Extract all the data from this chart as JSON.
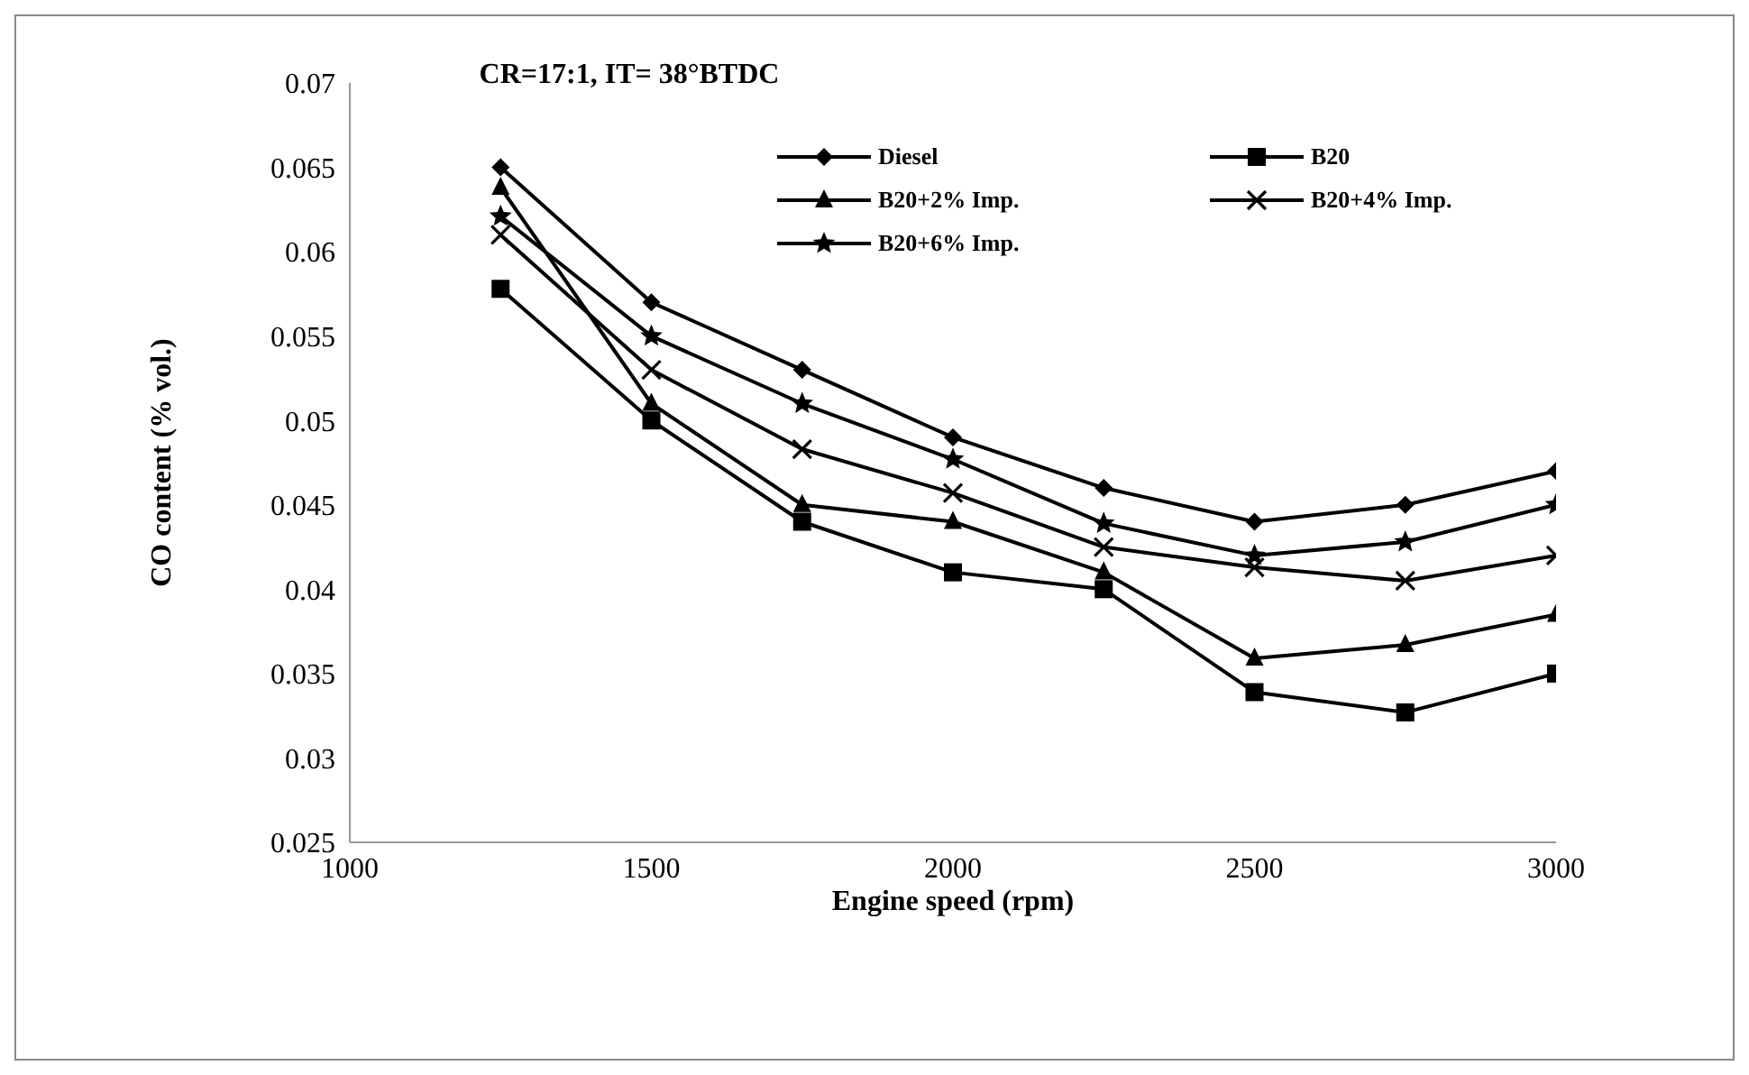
{
  "chart_data": {
    "type": "line",
    "title": "CR=17:1, IT= 38°BTDC",
    "xlabel": "Engine speed (rpm)",
    "ylabel": "CO content (% vol.)",
    "x": [
      1250,
      1500,
      1750,
      2000,
      2250,
      2500,
      2750,
      3000
    ],
    "series": [
      {
        "name": "Diesel",
        "color": "#000000",
        "marker": "diamond",
        "values": [
          0.065,
          0.057,
          0.053,
          0.049,
          0.046,
          0.044,
          0.045,
          0.047
        ]
      },
      {
        "name": "B20",
        "color": "#000000",
        "marker": "square",
        "values": [
          0.0578,
          0.05,
          0.044,
          0.041,
          0.04,
          0.0339,
          0.0327,
          0.035
        ]
      },
      {
        "name": "B20+2% Imp.",
        "color": "#000000",
        "marker": "triangle",
        "values": [
          0.0638,
          0.051,
          0.045,
          0.044,
          0.041,
          0.0359,
          0.0367,
          0.0385
        ]
      },
      {
        "name": "B20+4% Imp.",
        "color": "#000000",
        "marker": "cross",
        "values": [
          0.061,
          0.053,
          0.0483,
          0.0457,
          0.0425,
          0.0413,
          0.0405,
          0.042
        ]
      },
      {
        "name": "B20+6% Imp.",
        "color": "#000000",
        "marker": "star",
        "values": [
          0.0621,
          0.055,
          0.051,
          0.0477,
          0.0439,
          0.042,
          0.0428,
          0.045
        ]
      }
    ],
    "xlim": [
      1000,
      3000
    ],
    "xticks": [
      1000,
      1500,
      2000,
      2500,
      3000
    ],
    "ylim": [
      0.025,
      0.07
    ],
    "yticks": [
      0.025,
      0.03,
      0.035,
      0.04,
      0.045,
      0.05,
      0.055,
      0.06,
      0.065,
      0.07
    ],
    "grid": false,
    "legend": "top right",
    "line_style": "solid"
  }
}
